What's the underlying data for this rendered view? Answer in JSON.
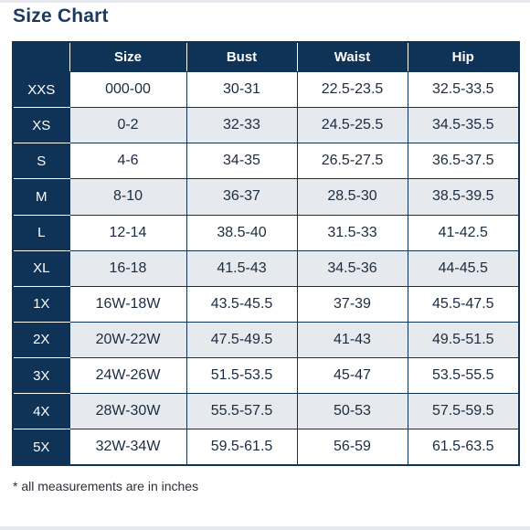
{
  "title": "Size Chart",
  "columns": [
    "",
    "Size",
    "Bust",
    "Waist",
    "Hip"
  ],
  "rows": [
    {
      "label": "XXS",
      "size": "000-00",
      "bust": "30-31",
      "waist": "22.5-23.5",
      "hip": "32.5-33.5"
    },
    {
      "label": "XS",
      "size": "0-2",
      "bust": "32-33",
      "waist": "24.5-25.5",
      "hip": "34.5-35.5"
    },
    {
      "label": "S",
      "size": "4-6",
      "bust": "34-35",
      "waist": "26.5-27.5",
      "hip": "36.5-37.5"
    },
    {
      "label": "M",
      "size": "8-10",
      "bust": "36-37",
      "waist": "28.5-30",
      "hip": "38.5-39.5"
    },
    {
      "label": "L",
      "size": "12-14",
      "bust": "38.5-40",
      "waist": "31.5-33",
      "hip": "41-42.5"
    },
    {
      "label": "XL",
      "size": "16-18",
      "bust": "41.5-43",
      "waist": "34.5-36",
      "hip": "44-45.5"
    },
    {
      "label": "1X",
      "size": "16W-18W",
      "bust": "43.5-45.5",
      "waist": "37-39",
      "hip": "45.5-47.5"
    },
    {
      "label": "2X",
      "size": "20W-22W",
      "bust": "47.5-49.5",
      "waist": "41-43",
      "hip": "49.5-51.5"
    },
    {
      "label": "3X",
      "size": "24W-26W",
      "bust": "51.5-53.5",
      "waist": "45-47",
      "hip": "53.5-55.5"
    },
    {
      "label": "4X",
      "size": "28W-30W",
      "bust": "55.5-57.5",
      "waist": "50-53",
      "hip": "57.5-59.5"
    },
    {
      "label": "5X",
      "size": "32W-34W",
      "bust": "59.5-61.5",
      "waist": "56-59",
      "hip": "61.5-63.5"
    }
  ],
  "footnote": "* all measurements are in inches",
  "colors": {
    "header_bg": "#0f3257",
    "title": "#1b3a5e",
    "stripe": "#e6e9ee",
    "cell_text": "#1b2c40"
  }
}
